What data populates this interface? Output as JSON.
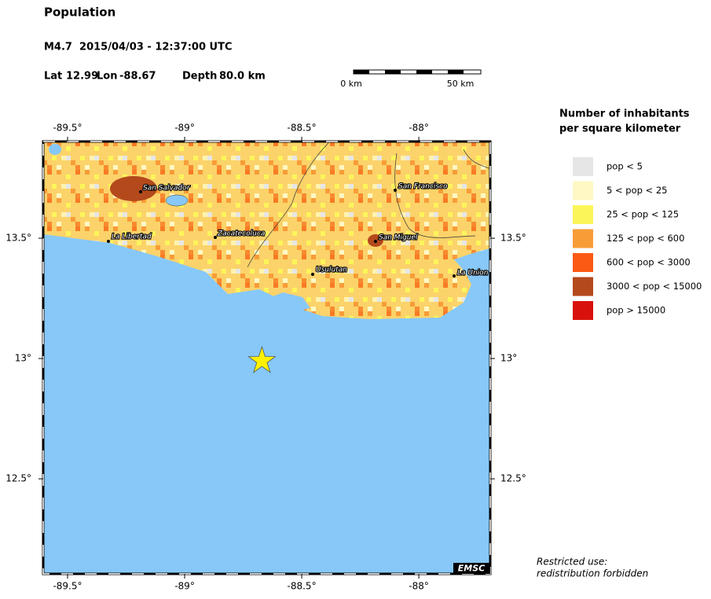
{
  "header": {
    "title": "Population",
    "event": "M4.7  2015/04/03 - 12:37:00 UTC",
    "lat_label": "Lat",
    "lat": 12.99,
    "lon_label": "Lon",
    "lon": -88.67,
    "depth_label": "Depth",
    "depth": "80.0 km"
  },
  "scale_bar": {
    "start": "0 km",
    "end": "50 km"
  },
  "map": {
    "lonlim": [
      -89.604,
      -87.695
    ],
    "latlim": [
      12.105,
      13.902
    ],
    "lon_ticks": [
      {
        "value": -89.5,
        "label": "-89.5°"
      },
      {
        "value": -89,
        "label": "-89°"
      },
      {
        "value": -88.5,
        "label": "-88.5°"
      },
      {
        "value": -88,
        "label": "-88°"
      }
    ],
    "lat_ticks": [
      {
        "value": 13.5,
        "label": "13.5°"
      },
      {
        "value": 13,
        "label": "13°"
      },
      {
        "value": 12.5,
        "label": "12.5°"
      }
    ],
    "cities": [
      "San Salvador",
      "La Libertad",
      "Zacatecoluca",
      "San Francisco",
      "San Miguel",
      "Usulutan",
      "La Union"
    ],
    "credit": "EMSC"
  },
  "legend": {
    "title": [
      "Number of inhabitants",
      "per square kilometer"
    ],
    "items": [
      {
        "label": "pop < 5",
        "color": "#e6e6e6"
      },
      {
        "label": "5 < pop < 25",
        "color": "#fff8c4"
      },
      {
        "label": "25 < pop < 125",
        "color": "#fcf55a"
      },
      {
        "label": "125 < pop < 600",
        "color": "#f89c38"
      },
      {
        "label": "600 < pop < 3000",
        "color": "#fa5a14"
      },
      {
        "label": "3000 < pop < 15000",
        "color": "#b4491c"
      },
      {
        "label": "pop > 15000",
        "color": "#d9110d"
      }
    ]
  },
  "notice": [
    "Restricted use:",
    "redistribution forbidden"
  ]
}
